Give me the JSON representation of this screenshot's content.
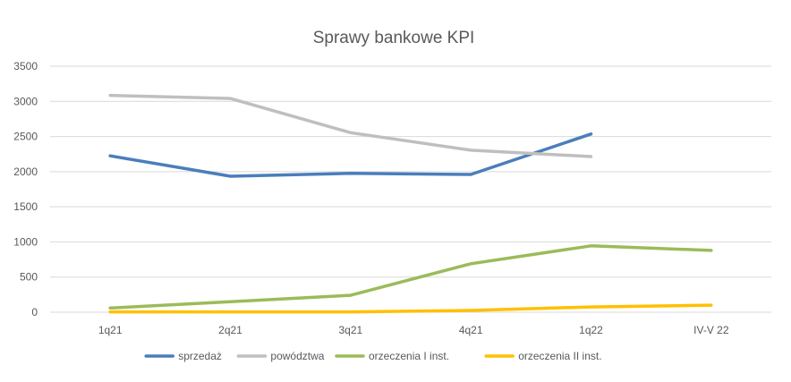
{
  "chart_data": {
    "type": "line",
    "title": "Sprawy bankowe KPI",
    "categories": [
      "1q21",
      "2q21",
      "3q21",
      "4q21",
      "1q22",
      "IV-V 22"
    ],
    "ylim": [
      0,
      3500
    ],
    "yticks": [
      0,
      500,
      1000,
      1500,
      2000,
      2500,
      3000,
      3500
    ],
    "grid": true,
    "legend_position": "bottom",
    "series": [
      {
        "name": "sprzedaż",
        "color": "#4a7ebb",
        "values": [
          2225,
          1935,
          1975,
          1960,
          2535,
          null
        ]
      },
      {
        "name": "powództwa",
        "color": "#bfbfbf",
        "values": [
          3085,
          3040,
          2555,
          2305,
          2215,
          null
        ]
      },
      {
        "name": "orzeczenia I inst.",
        "color": "#9bbb59",
        "values": [
          60,
          150,
          240,
          690,
          945,
          880
        ]
      },
      {
        "name": "orzeczenia II inst.",
        "color": "#ffc000",
        "values": [
          5,
          5,
          5,
          25,
          75,
          100
        ]
      }
    ]
  }
}
